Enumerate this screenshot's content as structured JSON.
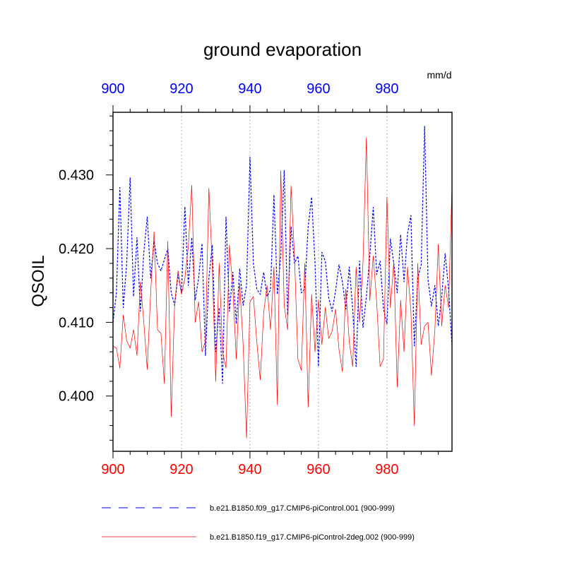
{
  "chart_data": {
    "type": "line",
    "title": "ground evaporation",
    "ylabel": "QSOIL",
    "units": "mm/d",
    "xlim": [
      900,
      999
    ],
    "ylim": [
      0.3925,
      0.4385
    ],
    "x_ticks": [
      900,
      920,
      940,
      960,
      980
    ],
    "y_ticks": [
      0.4,
      0.41,
      0.42,
      0.43
    ],
    "y_tick_labels": [
      "0.400",
      "0.410",
      "0.420",
      "0.430"
    ],
    "top_axis_color": "#0000ff",
    "bottom_axis_color": "#ff0000",
    "x": [
      900,
      901,
      902,
      903,
      904,
      905,
      906,
      907,
      908,
      909,
      910,
      911,
      912,
      913,
      914,
      915,
      916,
      917,
      918,
      919,
      920,
      921,
      922,
      923,
      924,
      925,
      926,
      927,
      928,
      929,
      930,
      931,
      932,
      933,
      934,
      935,
      936,
      937,
      938,
      939,
      940,
      941,
      942,
      943,
      944,
      945,
      946,
      947,
      948,
      949,
      950,
      951,
      952,
      953,
      954,
      955,
      956,
      957,
      958,
      959,
      960,
      961,
      962,
      963,
      964,
      965,
      966,
      967,
      968,
      969,
      970,
      971,
      972,
      973,
      974,
      975,
      976,
      977,
      978,
      979,
      980,
      981,
      982,
      983,
      984,
      985,
      986,
      987,
      988,
      989,
      990,
      991,
      992,
      993,
      994,
      995,
      996,
      997,
      998,
      999
    ],
    "series": [
      {
        "name": "b.e21.B1850.f09_g17.CMIP6-piControl.001 (900-999)",
        "color": "#0000ff",
        "style": "dashed",
        "values": [
          0.41,
          0.414,
          0.4283,
          0.412,
          0.418,
          0.4296,
          0.4135,
          0.4215,
          0.4115,
          0.4195,
          0.4243,
          0.416,
          0.421,
          0.418,
          0.417,
          0.4185,
          0.42,
          0.414,
          0.4123,
          0.4165,
          0.414,
          0.4257,
          0.415,
          0.4215,
          0.413,
          0.416,
          0.4207,
          0.4055,
          0.416,
          0.4205,
          0.406,
          0.412,
          0.4017,
          0.4243,
          0.4115,
          0.4168,
          0.4098,
          0.4173,
          0.4123,
          0.415,
          0.4324,
          0.418,
          0.4145,
          0.4138,
          0.4168,
          0.4135,
          0.4144,
          0.4273,
          0.4138,
          0.419,
          0.4306,
          0.411,
          0.423,
          0.418,
          0.419,
          0.414,
          0.4145,
          0.423,
          0.427,
          0.418,
          0.404,
          0.4195,
          0.4183,
          0.4133,
          0.4115,
          0.4143,
          0.4178,
          0.4155,
          0.4118,
          0.4175,
          0.4118,
          0.404,
          0.4183,
          0.4093,
          0.4135,
          0.419,
          0.4256,
          0.4165,
          0.4183,
          0.4118,
          0.4098,
          0.4213,
          0.418,
          0.414,
          0.4219,
          0.4155,
          0.422,
          0.4245,
          0.4068,
          0.416,
          0.4178,
          0.4366,
          0.4158,
          0.4122,
          0.415,
          0.4095,
          0.4135,
          0.4193,
          0.4145,
          0.4068
        ]
      },
      {
        "name": "b.e21.B1850.f19_g17.CMIP6-piControl-2deg.002 (900-999)",
        "color": "#ff0000",
        "style": "solid",
        "values": [
          0.4068,
          0.4065,
          0.4038,
          0.411,
          0.4075,
          0.4065,
          0.409,
          0.4055,
          0.4155,
          0.41,
          0.4036,
          0.414,
          0.4223,
          0.409,
          0.4085,
          0.4017,
          0.421,
          0.3972,
          0.4125,
          0.417,
          0.4138,
          0.416,
          0.4203,
          0.4286,
          0.41,
          0.4128,
          0.406,
          0.4075,
          0.4282,
          0.4175,
          0.402,
          0.418,
          0.406,
          0.4038,
          0.4205,
          0.4145,
          0.405,
          0.4153,
          0.407,
          0.3943,
          0.4128,
          0.4135,
          0.4073,
          0.4022,
          0.4113,
          0.415,
          0.409,
          0.4175,
          0.3988,
          0.4306,
          0.4123,
          0.409,
          0.4285,
          0.419,
          0.405,
          0.4035,
          0.418,
          0.3985,
          0.4138,
          0.406,
          0.413,
          0.407,
          0.412,
          0.4078,
          0.4088,
          0.4118,
          0.4063,
          0.4033,
          0.4145,
          0.4073,
          0.404,
          0.4175,
          0.41,
          0.418,
          0.4351,
          0.413,
          0.419,
          0.4128,
          0.404,
          0.405,
          0.427,
          0.412,
          0.4182,
          0.4012,
          0.413,
          0.406,
          0.4175,
          0.4115,
          0.396,
          0.418,
          0.407,
          0.4095,
          0.41,
          0.4028,
          0.409,
          0.4206,
          0.4095,
          0.415,
          0.412,
          0.4285
        ]
      }
    ]
  }
}
